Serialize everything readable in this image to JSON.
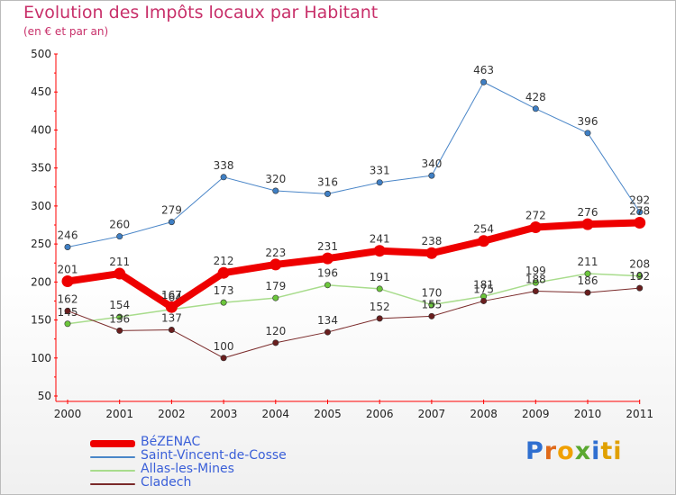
{
  "title": "Evolution des Impôts locaux par Habitant",
  "subtitle": "(en € et par an)",
  "logo_letters": [
    "P",
    "r",
    "o",
    "x",
    "i",
    "ti"
  ],
  "chart_data": {
    "type": "line",
    "title": "Evolution des Impôts locaux par Habitant",
    "subtitle": "(en € et par an)",
    "xlabel": "",
    "ylabel": "",
    "x": [
      "2000",
      "2001",
      "2002",
      "2003",
      "2004",
      "2005",
      "2006",
      "2007",
      "2008",
      "2009",
      "2010",
      "2011"
    ],
    "ylim": [
      50,
      500
    ],
    "yticks": [
      50,
      100,
      150,
      200,
      250,
      300,
      350,
      400,
      450,
      500
    ],
    "grid": false,
    "legend_position": "bottom-left",
    "series": [
      {
        "name": "Saint-Vincent-de-Cosse",
        "color": "#4a86c8",
        "marker": "#3f7fc4",
        "width": 1,
        "values": [
          246,
          260,
          279,
          338,
          320,
          316,
          331,
          340,
          463,
          428,
          396,
          292
        ]
      },
      {
        "name": "Allas-les-Mines",
        "color": "#a8dc8c",
        "marker": "#6cc63c",
        "width": 1.5,
        "values": [
          145,
          154,
          164,
          173,
          179,
          196,
          191,
          170,
          181,
          199,
          211,
          208
        ]
      },
      {
        "name": "Cladech",
        "color": "#7a2a2a",
        "marker": "#6a1e1e",
        "width": 1,
        "values": [
          162,
          136,
          137,
          100,
          120,
          134,
          152,
          155,
          175,
          188,
          186,
          192
        ]
      },
      {
        "name": "BéZENAC",
        "color": "#ee0000",
        "marker": "#ee0000",
        "width": 8,
        "values": [
          201,
          211,
          167,
          212,
          223,
          231,
          241,
          238,
          254,
          272,
          276,
          278
        ]
      }
    ],
    "legend": [
      {
        "name": "BéZENAC",
        "color": "#ee0000"
      },
      {
        "name": "Saint-Vincent-de-Cosse",
        "color": "#4a86c8"
      },
      {
        "name": "Allas-les-Mines",
        "color": "#a8dc8c"
      },
      {
        "name": "Cladech",
        "color": "#7a2a2a"
      }
    ]
  }
}
